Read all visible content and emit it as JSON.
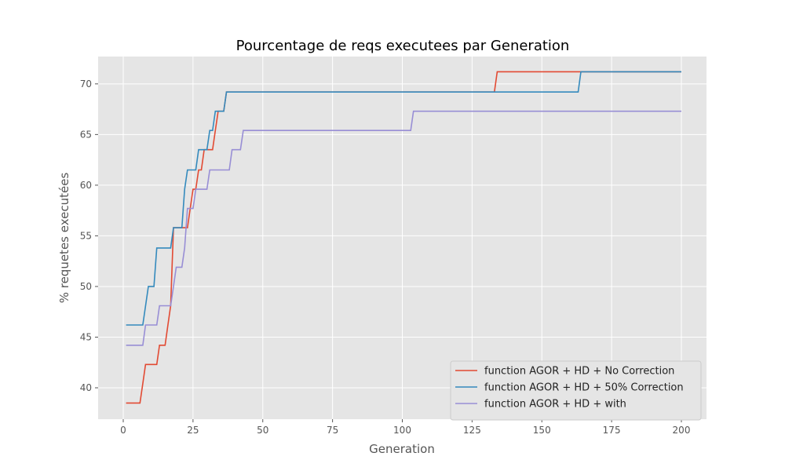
{
  "chart_data": {
    "type": "line",
    "title": "Pourcentage de reqs executees par Generation",
    "xlabel": "Generation",
    "ylabel": "% requetes executées",
    "xlim": [
      -9,
      209
    ],
    "ylim": [
      36.9,
      72.7
    ],
    "x_ticks": [
      0,
      25,
      50,
      75,
      100,
      125,
      150,
      175,
      200
    ],
    "y_ticks": [
      40,
      45,
      50,
      55,
      60,
      65,
      70
    ],
    "grid": true,
    "legend_position": "lower-right",
    "series": [
      {
        "name": "function AGOR + HD + No Correction",
        "color": "#E24A33",
        "points": [
          [
            1,
            38.5
          ],
          [
            6,
            38.5
          ],
          [
            7,
            40.4
          ],
          [
            8,
            42.3
          ],
          [
            12,
            42.3
          ],
          [
            13,
            44.2
          ],
          [
            15,
            44.2
          ],
          [
            16,
            46.2
          ],
          [
            17,
            48.1
          ],
          [
            18,
            55.8
          ],
          [
            23,
            55.8
          ],
          [
            24,
            57.7
          ],
          [
            25,
            59.6
          ],
          [
            26,
            59.6
          ],
          [
            27,
            61.5
          ],
          [
            28,
            61.5
          ],
          [
            29,
            63.5
          ],
          [
            32,
            63.5
          ],
          [
            33,
            65.4
          ],
          [
            34,
            67.3
          ],
          [
            36,
            67.3
          ],
          [
            37,
            69.2
          ],
          [
            133,
            69.2
          ],
          [
            134,
            71.2
          ],
          [
            200,
            71.2
          ]
        ]
      },
      {
        "name": "function AGOR + HD + 50% Correction",
        "color": "#348ABD",
        "points": [
          [
            1,
            46.2
          ],
          [
            7,
            46.2
          ],
          [
            9,
            50.0
          ],
          [
            11,
            50.0
          ],
          [
            12,
            53.8
          ],
          [
            17,
            53.8
          ],
          [
            18,
            55.8
          ],
          [
            21,
            55.8
          ],
          [
            22,
            59.6
          ],
          [
            23,
            61.5
          ],
          [
            26,
            61.5
          ],
          [
            27,
            63.5
          ],
          [
            30,
            63.5
          ],
          [
            31,
            65.4
          ],
          [
            32,
            65.4
          ],
          [
            33,
            67.3
          ],
          [
            36,
            67.3
          ],
          [
            37,
            69.2
          ],
          [
            163,
            69.2
          ],
          [
            164,
            71.2
          ],
          [
            200,
            71.2
          ]
        ]
      },
      {
        "name": "function AGOR + HD + with",
        "color": "#988ED5",
        "points": [
          [
            1,
            44.2
          ],
          [
            7,
            44.2
          ],
          [
            8,
            46.2
          ],
          [
            12,
            46.2
          ],
          [
            13,
            48.1
          ],
          [
            17,
            48.1
          ],
          [
            18,
            50.0
          ],
          [
            19,
            51.9
          ],
          [
            21,
            51.9
          ],
          [
            22,
            53.8
          ],
          [
            23,
            57.7
          ],
          [
            25,
            57.7
          ],
          [
            26,
            59.6
          ],
          [
            30,
            59.6
          ],
          [
            31,
            61.5
          ],
          [
            38,
            61.5
          ],
          [
            39,
            63.5
          ],
          [
            42,
            63.5
          ],
          [
            43,
            65.4
          ],
          [
            103,
            65.4
          ],
          [
            104,
            67.3
          ],
          [
            200,
            67.3
          ]
        ]
      }
    ]
  },
  "colors": {
    "plot_background": "#E5E5E5",
    "grid": "#FFFFFF",
    "legend_background": "#E5E5E5",
    "legend_border": "#CCCCCC"
  }
}
